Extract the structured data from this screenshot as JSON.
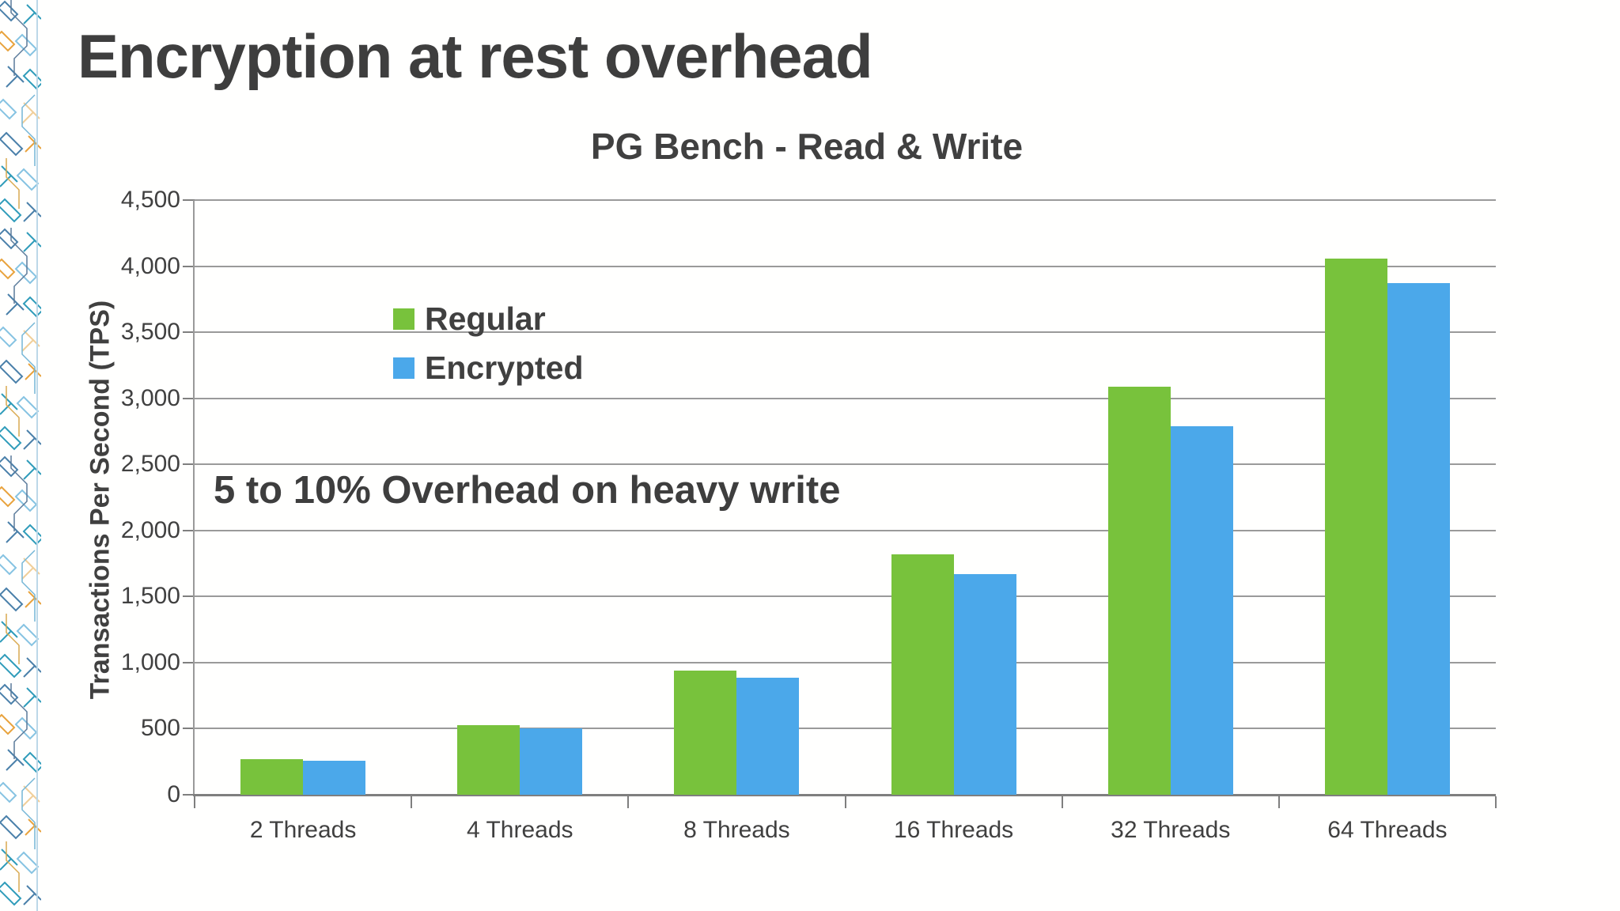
{
  "slide": {
    "title": "Encryption at rest overhead",
    "annotation": "5 to 10% Overhead on heavy write"
  },
  "chart_data": {
    "type": "bar",
    "title": "PG Bench - Read & Write",
    "xlabel": "",
    "ylabel": "Transactions Per Second (TPS)",
    "categories": [
      "2 Threads",
      "4 Threads",
      "8 Threads",
      "16 Threads",
      "32 Threads",
      "64 Threads"
    ],
    "series": [
      {
        "name": "Regular",
        "color": "#78C23C",
        "values": [
          270,
          525,
          940,
          1820,
          3090,
          4055
        ]
      },
      {
        "name": "Encrypted",
        "color": "#4BA8EA",
        "values": [
          260,
          500,
          885,
          1670,
          2790,
          3870
        ]
      }
    ],
    "ylim": [
      0,
      4500
    ],
    "ytick_step": 500,
    "ytick_labels": [
      "4,500",
      "4,000",
      "3,500",
      "3,000",
      "2,500",
      "2,000",
      "1,500",
      "1,000",
      "500",
      "0"
    ],
    "grid": true,
    "legend_position": "inside-top-left"
  },
  "colors": {
    "text": "#3E3E3E",
    "gridline": "#9A9A9A",
    "axis": "#7F7F7F",
    "background": "#FFFFFF"
  }
}
